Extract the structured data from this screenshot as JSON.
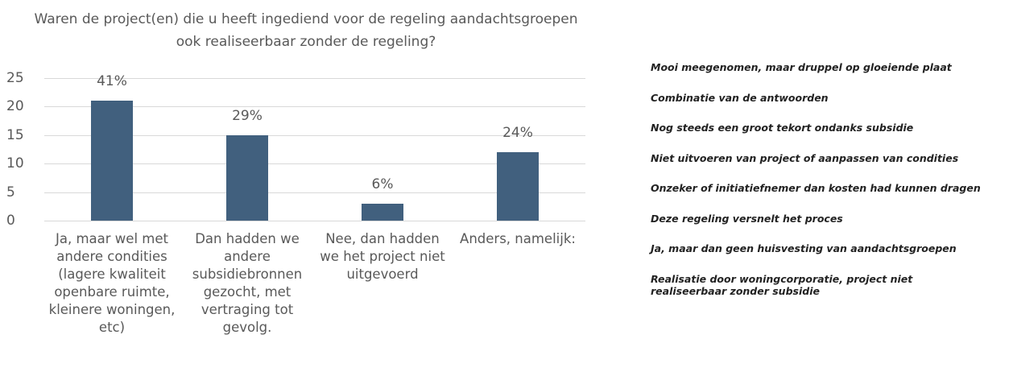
{
  "chart_data": {
    "type": "bar",
    "title": "Waren de project(en) die u heeft ingediend voor de regeling aandachtsgroepen ook realiseerbaar zonder de regeling?",
    "categories": [
      "Ja, maar wel met andere condities (lagere kwaliteit openbare ruimte, kleinere woningen, etc)",
      "Dan hadden we andere subsidiebronnen gezocht, met vertraging tot gevolg.",
      "Nee, dan hadden we het project niet uitgevoerd",
      "Anders, namelijk:"
    ],
    "values": [
      21,
      15,
      3,
      12
    ],
    "annotations": [
      "41%",
      "29%",
      "6%",
      "24%"
    ],
    "color": "#41607e",
    "ylim": [
      0,
      25
    ],
    "yticks": [
      0,
      5,
      10,
      15,
      20,
      25
    ],
    "grid": true
  },
  "comments": [
    "Mooi meegenomen, maar druppel op gloeiende plaat",
    "Combinatie van de antwoorden",
    "Nog steeds een groot tekort ondanks subsidie",
    "Niet uitvoeren van project of aanpassen van condities",
    "Onzeker of initiatiefnemer dan kosten had kunnen dragen",
    "Deze regeling versnelt het proces",
    "Ja, maar dan geen huisvesting van aandachtsgroepen",
    "Realisatie door woningcorporatie, project niet realiseerbaar zonder subsidie"
  ]
}
